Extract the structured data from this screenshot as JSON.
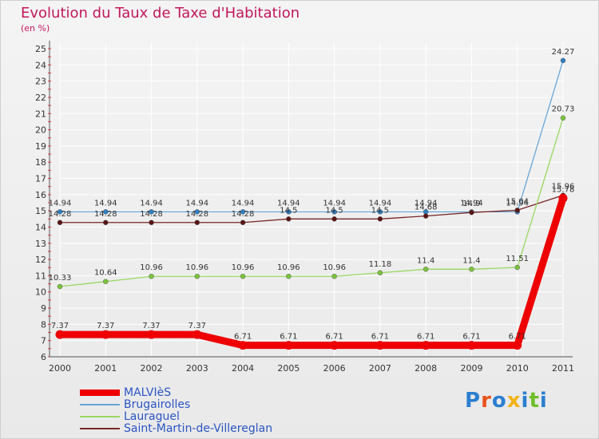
{
  "header": {
    "title": "Evolution du Taux de Taxe d'Habitation",
    "unit": "(en %)"
  },
  "chart_data": {
    "type": "line",
    "title": "Evolution du Taux de Taxe d'Habitation",
    "ylabel": "(en %)",
    "xlabel": "",
    "ylim": [
      6,
      25
    ],
    "yticks": [
      6,
      7,
      8,
      9,
      10,
      11,
      12,
      13,
      14,
      15,
      16,
      17,
      18,
      19,
      20,
      21,
      22,
      23,
      24,
      25
    ],
    "grid": true,
    "legend_position": "bottom-left",
    "categories": [
      "2000",
      "2001",
      "2002",
      "2003",
      "2004",
      "2005",
      "2006",
      "2007",
      "2008",
      "2009",
      "2010",
      "2011"
    ],
    "series": [
      {
        "name": "Brugairolles",
        "color": "#6aa6d6",
        "marker": "#2e7fc2",
        "values": [
          14.94,
          14.94,
          14.94,
          14.94,
          14.94,
          14.94,
          14.94,
          14.94,
          14.94,
          14.94,
          14.94,
          24.27
        ],
        "labels": [
          "14.94",
          "14.94",
          "14.94",
          "14.94",
          "14.94",
          "14.94",
          "14.94",
          "14.94",
          "14.94",
          "14.94",
          "14.94",
          "24.27"
        ]
      },
      {
        "name": "Saint-Martin-de-Villereglan",
        "color": "#7a2626",
        "marker": "#5a1414",
        "values": [
          14.28,
          14.28,
          14.28,
          14.28,
          14.28,
          14.5,
          14.5,
          14.5,
          14.68,
          14.9,
          15.04,
          15.96
        ],
        "labels": [
          "14.28",
          "14.28",
          "14.28",
          "14.28",
          "14.28",
          "14.5",
          "14.5",
          "14.5",
          "14.68",
          "14.9",
          "15.04",
          "15.96"
        ]
      },
      {
        "name": "Lauraguel",
        "color": "#98d860",
        "marker": "#7cc43c",
        "values": [
          10.33,
          10.64,
          10.96,
          10.96,
          10.96,
          10.96,
          10.96,
          11.18,
          11.4,
          11.4,
          11.51,
          20.73
        ],
        "labels": [
          "10.33",
          "10.64",
          "10.96",
          "10.96",
          "10.96",
          "10.96",
          "10.96",
          "11.18",
          "11.4",
          "11.4",
          "11.51",
          "20.73"
        ]
      },
      {
        "name": "MALVIèS",
        "color": "#ee0000",
        "marker": "#ee0000",
        "values": [
          7.37,
          7.37,
          7.37,
          7.37,
          6.71,
          6.71,
          6.71,
          6.71,
          6.71,
          6.71,
          6.71,
          15.78
        ],
        "labels": [
          "7.37",
          "7.37",
          "7.37",
          "7.37",
          "6.71",
          "6.71",
          "6.71",
          "6.71",
          "6.71",
          "6.71",
          "6.71",
          "15.78"
        ]
      }
    ]
  },
  "legend": {
    "items": [
      {
        "label": "MALVIèS",
        "color": "#ee0000"
      },
      {
        "label": "Brugairolles",
        "color": "#6aa6d6"
      },
      {
        "label": "Lauraguel",
        "color": "#98d860"
      },
      {
        "label": "Saint-Martin-de-Villereglan",
        "color": "#7a2626"
      }
    ]
  },
  "logo": {
    "text": "Proxiti",
    "colors": [
      "#2b7fd0",
      "#e8541c",
      "#2b7fd0",
      "#f2b317",
      "#2b7fd0",
      "#6fbf2a",
      "#2b7fd0"
    ]
  }
}
